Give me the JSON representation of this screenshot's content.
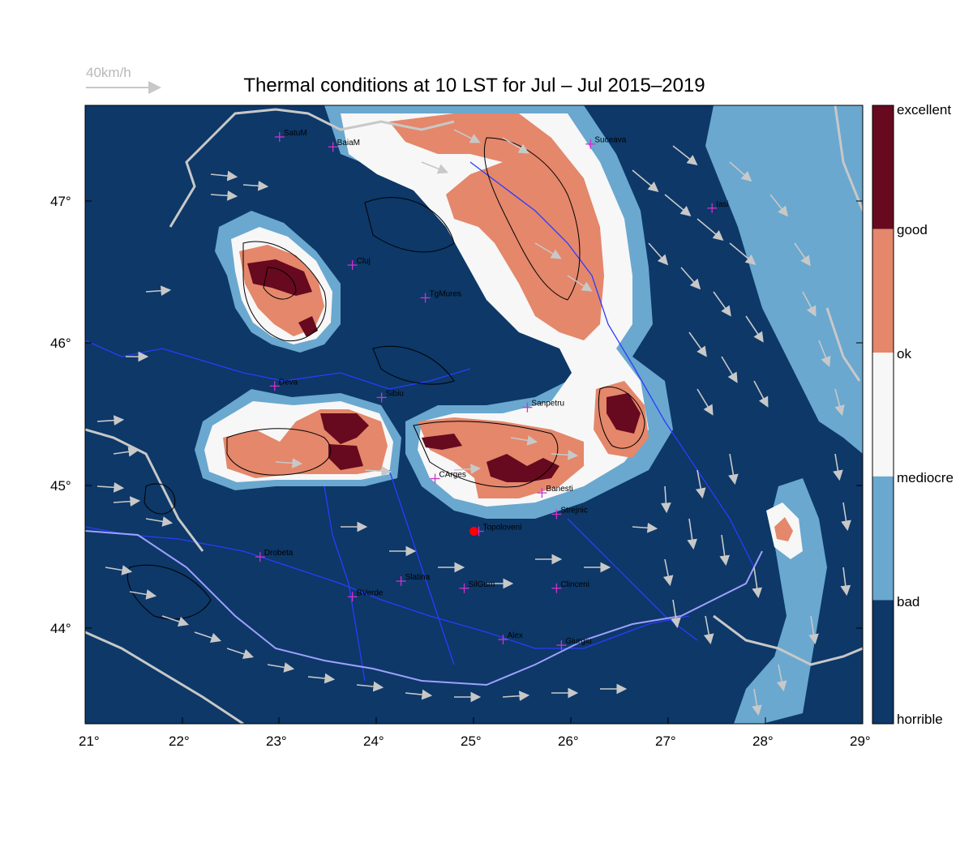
{
  "title": "Thermal conditions at 10 LST for Jul – Jul  2015–2019",
  "scale": {
    "label": "40km/h"
  },
  "axes": {
    "x_ticks": [
      "21°",
      "22°",
      "23°",
      "24°",
      "25°",
      "26°",
      "27°",
      "28°",
      "29°"
    ],
    "y_ticks": [
      "47°",
      "46°",
      "45°",
      "44°"
    ]
  },
  "colorbar": {
    "labels": [
      "excellent",
      "good",
      "ok",
      "mediocre",
      "bad",
      "horrible"
    ],
    "colors": [
      "#670a1f",
      "#e4876b",
      "#f7f7f7",
      "#6aa8cf",
      "#0d3868"
    ]
  },
  "colors": {
    "horrible": "#0d3868",
    "bad": "#6aa8cf",
    "mediocre": "#f7f7f7",
    "ok": "#e4876b",
    "good": "#670a1f",
    "marker": "#cc33cc",
    "launch": "#ff0000",
    "rivers": "#2a3cff",
    "borders": "#c8c8c8",
    "wind": "#c8c8c8"
  },
  "cities": [
    {
      "name": "SatuM",
      "lon": 23.0,
      "lat": 47.45
    },
    {
      "name": "BaiaM",
      "lon": 23.55,
      "lat": 47.38
    },
    {
      "name": "Suceava",
      "lon": 26.2,
      "lat": 47.4
    },
    {
      "name": "Iasi",
      "lon": 27.45,
      "lat": 46.95
    },
    {
      "name": "Cluj",
      "lon": 23.75,
      "lat": 46.55
    },
    {
      "name": "TgMures",
      "lon": 24.5,
      "lat": 46.32
    },
    {
      "name": "Deva",
      "lon": 22.95,
      "lat": 45.7
    },
    {
      "name": "Sibiu",
      "lon": 24.05,
      "lat": 45.62
    },
    {
      "name": "Sanpetru",
      "lon": 25.55,
      "lat": 45.55
    },
    {
      "name": "CArges",
      "lon": 24.6,
      "lat": 45.05
    },
    {
      "name": "Banesti",
      "lon": 25.7,
      "lat": 44.95
    },
    {
      "name": "Strejnic",
      "lon": 25.85,
      "lat": 44.8
    },
    {
      "name": "Topoloveni",
      "lon": 25.05,
      "lat": 44.68
    },
    {
      "name": "Drobeta",
      "lon": 22.8,
      "lat": 44.5
    },
    {
      "name": "Slatina",
      "lon": 24.25,
      "lat": 44.33
    },
    {
      "name": "SilGum",
      "lon": 24.9,
      "lat": 44.28
    },
    {
      "name": "Clinceni",
      "lon": 25.85,
      "lat": 44.28
    },
    {
      "name": "BVerde",
      "lon": 23.75,
      "lat": 44.22
    },
    {
      "name": "Alex",
      "lon": 25.3,
      "lat": 43.92
    },
    {
      "name": "Giurgiu",
      "lon": 25.9,
      "lat": 43.88
    }
  ],
  "launch_site": {
    "name": "Topoloveni",
    "lon": 25.0,
    "lat": 44.68
  }
}
